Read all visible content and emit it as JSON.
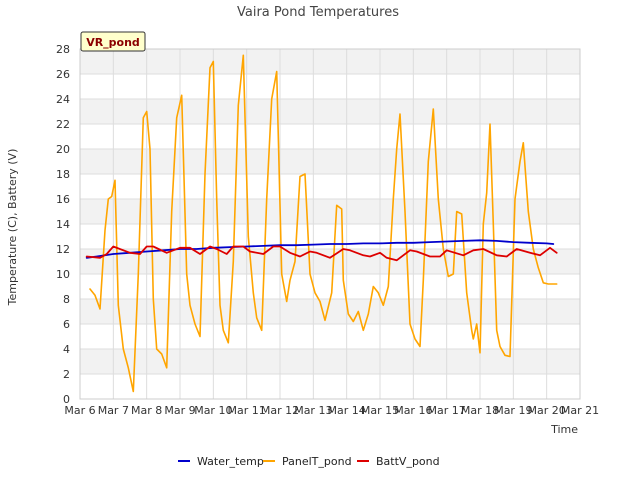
{
  "chart_data": {
    "type": "line",
    "title": "Vaira Pond Temperatures",
    "xlabel": "Time",
    "ylabel": "Temperature (C), Battery (V)",
    "badge": "VR_pond",
    "xlim": [
      6,
      21
    ],
    "ylim": [
      0,
      28
    ],
    "x_ticks": [
      {
        "value": 6,
        "label": "Mar 6"
      },
      {
        "value": 7,
        "label": "Mar 7"
      },
      {
        "value": 8,
        "label": "Mar 8"
      },
      {
        "value": 9,
        "label": "Mar 9"
      },
      {
        "value": 10,
        "label": "Mar 10"
      },
      {
        "value": 11,
        "label": "Mar 11"
      },
      {
        "value": 12,
        "label": "Mar 12"
      },
      {
        "value": 13,
        "label": "Mar 13"
      },
      {
        "value": 14,
        "label": "Mar 14"
      },
      {
        "value": 15,
        "label": "Mar 15"
      },
      {
        "value": 16,
        "label": "Mar 16"
      },
      {
        "value": 17,
        "label": "Mar 17"
      },
      {
        "value": 18,
        "label": "Mar 18"
      },
      {
        "value": 19,
        "label": "Mar 19"
      },
      {
        "value": 20,
        "label": "Mar 20"
      },
      {
        "value": 21,
        "label": "Mar 21"
      }
    ],
    "y_ticks": [
      0,
      2,
      4,
      6,
      8,
      10,
      12,
      14,
      16,
      18,
      20,
      22,
      24,
      26,
      28
    ],
    "grid": true,
    "legend_position": "bottom",
    "series": [
      {
        "name": "Water_temp",
        "color": "#0000cc",
        "x": [
          6.2,
          6.5,
          7.0,
          7.5,
          8.0,
          8.5,
          9.0,
          9.5,
          10.0,
          10.5,
          11.0,
          11.5,
          12.0,
          12.5,
          13.0,
          13.5,
          14.0,
          14.5,
          15.0,
          15.5,
          16.0,
          16.5,
          17.0,
          17.5,
          18.0,
          18.5,
          19.0,
          19.5,
          20.0,
          20.2
        ],
        "y": [
          11.3,
          11.4,
          11.6,
          11.7,
          11.8,
          11.9,
          12.0,
          12.0,
          12.1,
          12.15,
          12.2,
          12.25,
          12.3,
          12.3,
          12.35,
          12.4,
          12.4,
          12.45,
          12.45,
          12.5,
          12.5,
          12.55,
          12.6,
          12.65,
          12.7,
          12.65,
          12.55,
          12.5,
          12.45,
          12.4
        ]
      },
      {
        "name": "PanelT_pond",
        "color": "#ffa500",
        "x": [
          6.3,
          6.45,
          6.6,
          6.75,
          6.85,
          6.95,
          7.05,
          7.15,
          7.3,
          7.45,
          7.6,
          7.75,
          7.9,
          8.0,
          8.1,
          8.2,
          8.3,
          8.45,
          8.6,
          8.75,
          8.9,
          9.05,
          9.2,
          9.3,
          9.45,
          9.6,
          9.75,
          9.9,
          10.0,
          10.1,
          10.2,
          10.3,
          10.45,
          10.6,
          10.75,
          10.9,
          11.05,
          11.2,
          11.3,
          11.45,
          11.6,
          11.75,
          11.9,
          12.05,
          12.2,
          12.3,
          12.45,
          12.6,
          12.75,
          12.9,
          13.05,
          13.2,
          13.35,
          13.55,
          13.7,
          13.85,
          13.9,
          14.05,
          14.2,
          14.35,
          14.5,
          14.65,
          14.8,
          14.95,
          15.1,
          15.25,
          15.4,
          15.5,
          15.6,
          15.75,
          15.9,
          16.05,
          16.2,
          16.3,
          16.45,
          16.6,
          16.75,
          16.9,
          17.05,
          17.2,
          17.3,
          17.45,
          17.6,
          17.75,
          17.8,
          17.9,
          18.0,
          18.1,
          18.2,
          18.3,
          18.4,
          18.5,
          18.6,
          18.75,
          18.9,
          19.05,
          19.2,
          19.3,
          19.45,
          19.6,
          19.75,
          19.9,
          20.05,
          20.2,
          20.3
        ],
        "y": [
          8.8,
          8.3,
          7.2,
          13.5,
          16.0,
          16.2,
          17.5,
          7.5,
          4.0,
          2.5,
          0.6,
          10.0,
          22.5,
          23.0,
          20.0,
          8.0,
          4.0,
          3.6,
          2.5,
          15.0,
          22.5,
          24.3,
          10.0,
          7.5,
          6.0,
          5.0,
          18.0,
          26.5,
          27.0,
          16.0,
          7.5,
          5.5,
          4.5,
          11.0,
          23.5,
          27.5,
          13.0,
          8.5,
          6.5,
          5.5,
          16.0,
          24.0,
          26.2,
          10.0,
          7.8,
          9.5,
          11.0,
          17.8,
          18.0,
          10.0,
          8.5,
          7.8,
          6.3,
          8.5,
          15.5,
          15.2,
          9.5,
          6.8,
          6.2,
          7.0,
          5.5,
          6.8,
          9.0,
          8.5,
          7.5,
          9.0,
          16.0,
          20.0,
          22.8,
          15.0,
          6.0,
          4.8,
          4.2,
          9.5,
          19.0,
          23.2,
          16.0,
          12.0,
          9.8,
          10.0,
          15.0,
          14.8,
          8.5,
          5.5,
          4.8,
          6.0,
          3.7,
          14.0,
          16.5,
          22.0,
          14.0,
          5.5,
          4.2,
          3.5,
          3.4,
          16.0,
          19.0,
          20.5,
          15.0,
          12.0,
          10.5,
          9.3,
          9.2,
          9.2,
          9.2
        ]
      },
      {
        "name": "BattV_pond",
        "color": "#dd0000",
        "x": [
          6.2,
          6.6,
          6.8,
          7.0,
          7.5,
          7.8,
          8.0,
          8.2,
          8.6,
          9.0,
          9.3,
          9.6,
          9.9,
          10.1,
          10.4,
          10.6,
          10.9,
          11.1,
          11.5,
          11.8,
          12.0,
          12.3,
          12.6,
          12.9,
          13.1,
          13.5,
          13.9,
          14.1,
          14.5,
          14.7,
          15.0,
          15.2,
          15.5,
          15.9,
          16.1,
          16.5,
          16.8,
          17.0,
          17.5,
          17.8,
          18.1,
          18.5,
          18.8,
          19.1,
          19.5,
          19.8,
          20.1,
          20.3
        ],
        "y": [
          11.4,
          11.3,
          11.6,
          12.2,
          11.7,
          11.6,
          12.2,
          12.2,
          11.7,
          12.1,
          12.1,
          11.6,
          12.2,
          12.0,
          11.6,
          12.2,
          12.2,
          11.8,
          11.6,
          12.2,
          12.2,
          11.7,
          11.4,
          11.8,
          11.7,
          11.3,
          12.0,
          11.9,
          11.5,
          11.4,
          11.7,
          11.3,
          11.1,
          11.9,
          11.8,
          11.4,
          11.4,
          11.9,
          11.5,
          11.9,
          12.0,
          11.5,
          11.4,
          12.0,
          11.7,
          11.5,
          12.1,
          11.7
        ]
      }
    ]
  }
}
